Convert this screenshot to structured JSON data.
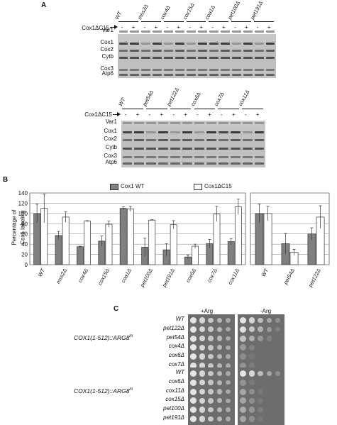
{
  "panelA": {
    "letter": "A",
    "construct_label": "Cox1ΔC15",
    "band_labels": [
      "Var1",
      "Cox1",
      "Cox2",
      "Cytb",
      "Cox3",
      "Atp6"
    ],
    "gel1_strains": [
      "WT",
      "mss2Δ",
      "cox4Δ",
      "cox15Δ",
      "coa1Δ",
      "pet100Δ",
      "pet191Δ"
    ],
    "gel2_strains": [
      "WT",
      "pet54Δ",
      "pet122Δ",
      "cox6Δ",
      "cox7Δ",
      "cox11Δ"
    ],
    "minus": "-",
    "plus": "+"
  },
  "panelB": {
    "letter": "B",
    "legend_wt": "Cox1 WT",
    "legend_dc15": "Cox1ΔC15",
    "ylabel_line1": "Percentage of",
    "ylabel_line2": "Cox1 labeling",
    "yticks": [
      "0",
      "20",
      "40",
      "60",
      "80",
      "100",
      "120",
      "140"
    ]
  },
  "chart_data": [
    {
      "type": "bar",
      "categories": [
        "WT",
        "mss2Δ",
        "cox4Δ",
        "cox15Δ",
        "coa1Δ",
        "pet100Δ",
        "pet191Δ",
        "cox6Δ",
        "cox7Δ",
        "cox11Δ"
      ],
      "series": [
        {
          "name": "Cox1 WT",
          "values": [
            100,
            57,
            35,
            46,
            110,
            34,
            29,
            15,
            41,
            45
          ],
          "errors": [
            18,
            8,
            1,
            10,
            3,
            18,
            12,
            4,
            8,
            6
          ]
        },
        {
          "name": "Cox1ΔC15",
          "values": [
            110,
            93,
            85,
            79,
            109,
            87,
            78,
            36,
            99,
            113
          ],
          "errors": [
            28,
            10,
            1,
            6,
            5,
            1,
            8,
            4,
            15,
            15
          ]
        }
      ],
      "ylim": [
        0,
        140
      ],
      "ylabel": "Percentage of Cox1 labeling",
      "grid": true,
      "legend": "top"
    },
    {
      "type": "bar",
      "categories": [
        "WT",
        "pet54Δ",
        "pet122Δ"
      ],
      "series": [
        {
          "name": "Cox1 WT",
          "values": [
            100,
            41,
            60
          ],
          "errors": [
            18,
            20,
            12
          ]
        },
        {
          "name": "Cox1ΔC15",
          "values": [
            100,
            24,
            93
          ],
          "errors": [
            14,
            6,
            22
          ]
        }
      ],
      "ylim": [
        0,
        140
      ],
      "grid": true
    }
  ],
  "panelC": {
    "letter": "C",
    "plus_arg": "+Arg",
    "minus_arg": "-Arg",
    "construct": "COX1(1-512)::ARG8",
    "construct_sup": "m",
    "group1": [
      "WT",
      "pet122Δ",
      "pet54Δ",
      "cox4Δ",
      "cox6Δ",
      "cox7Δ"
    ],
    "group2": [
      "WT",
      "cox6Δ",
      "cox11Δ",
      "cox15Δ",
      "pet100Δ",
      "pet191Δ"
    ],
    "growth_minus_arg_group1": [
      1.0,
      0.9,
      0.7,
      0.35,
      0.25,
      0.3
    ],
    "growth_minus_arg_group2": [
      1.0,
      0.3,
      0.45,
      0.45,
      0.5,
      0.45
    ]
  }
}
